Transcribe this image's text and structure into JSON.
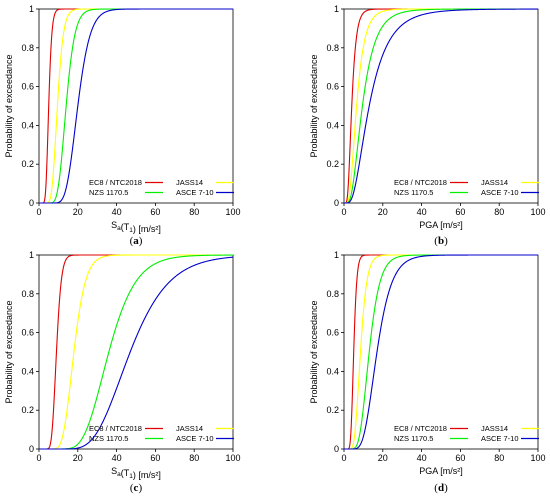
{
  "colors": {
    "EC8 / NTC2018": "#e00000",
    "JASS14": "#ffff00",
    "NZS 1170.5": "#00ef00",
    "ASCE 7-10": "#0000cc"
  },
  "chart_data": [
    {
      "type": "line",
      "caption": "(a)",
      "xlabel_main": "S",
      "xlabel_sub": "a",
      "xlabel_rest": "(T",
      "xlabel_sub2": "1",
      "xlabel_unit": ") [m/s²]",
      "ylabel": "Probability of exceedance",
      "xlim": [
        0,
        100
      ],
      "ylim": [
        0,
        1
      ],
      "xticks": [
        "0",
        "20",
        "40",
        "60",
        "80",
        "100"
      ],
      "yticks": [
        "0",
        "0.2",
        "0.4",
        "0.6",
        "0.8",
        "1"
      ],
      "grid": false,
      "legend": [
        {
          "label": "EC8 / NTC2018",
          "color_key": "EC8 / NTC2018"
        },
        {
          "label": "JASS14",
          "color_key": "JASS14"
        },
        {
          "label": "NZS 1170.5",
          "color_key": "NZS 1170.5"
        },
        {
          "label": "ASCE 7-10",
          "color_key": "ASCE 7-10"
        }
      ],
      "legend_location": "bottom-right",
      "series": [
        {
          "name": "EC8 / NTC2018",
          "median": 5,
          "beta": 0.25
        },
        {
          "name": "JASS14",
          "median": 9.5,
          "beta": 0.25
        },
        {
          "name": "NZS 1170.5",
          "median": 14,
          "beta": 0.25
        },
        {
          "name": "ASCE 7-10",
          "median": 20,
          "beta": 0.25
        }
      ]
    },
    {
      "type": "line",
      "caption": "(b)",
      "xlabel": "PGA [m/s²]",
      "ylabel": "Probability of exceedance",
      "xlim": [
        0,
        100
      ],
      "ylim": [
        0,
        1
      ],
      "xticks": [
        "0",
        "20",
        "40",
        "60",
        "80",
        "100"
      ],
      "yticks": [
        "0",
        "0.2",
        "0.4",
        "0.6",
        "0.8",
        "1"
      ],
      "grid": false,
      "legend": [
        {
          "label": "EC8 / NTC2018",
          "color_key": "EC8 / NTC2018"
        },
        {
          "label": "JASS14",
          "color_key": "JASS14"
        },
        {
          "label": "NZS 1170.5",
          "color_key": "NZS 1170.5"
        },
        {
          "label": "ASCE 7-10",
          "color_key": "ASCE 7-10"
        }
      ],
      "legend_location": "bottom-right",
      "series": [
        {
          "name": "EC8 / NTC2018",
          "median": 4,
          "beta": 0.45
        },
        {
          "name": "JASS14",
          "median": 6.5,
          "beta": 0.5
        },
        {
          "name": "NZS 1170.5",
          "median": 9.5,
          "beta": 0.55
        },
        {
          "name": "ASCE 7-10",
          "median": 13,
          "beta": 0.6
        }
      ]
    },
    {
      "type": "line",
      "caption": "(c)",
      "xlabel_main": "S",
      "xlabel_sub": "a",
      "xlabel_rest": "(T",
      "xlabel_sub2": "1",
      "xlabel_unit": ") [m/s²]",
      "ylabel": "Probability of exceedance",
      "xlim": [
        0,
        100
      ],
      "ylim": [
        0,
        1
      ],
      "xticks": [
        "0",
        "20",
        "40",
        "60",
        "80",
        "100"
      ],
      "yticks": [
        "0",
        "0.2",
        "0.4",
        "0.6",
        "0.8",
        "1"
      ],
      "grid": false,
      "legend": [
        {
          "label": "EC8 / NTC2018",
          "color_key": "EC8 / NTC2018"
        },
        {
          "label": "JASS14",
          "color_key": "JASS14"
        },
        {
          "label": "NZS 1170.5",
          "color_key": "NZS 1170.5"
        },
        {
          "label": "ASCE 7-10",
          "color_key": "ASCE 7-10"
        }
      ],
      "legend_location": "bottom-right",
      "series": [
        {
          "name": "EC8 / NTC2018",
          "median": 9,
          "beta": 0.22
        },
        {
          "name": "JASS14",
          "median": 18,
          "beta": 0.26
        },
        {
          "name": "NZS 1170.5",
          "median": 36,
          "beta": 0.3
        },
        {
          "name": "ASCE 7-10",
          "median": 47,
          "beta": 0.33
        }
      ]
    },
    {
      "type": "line",
      "caption": "(d)",
      "xlabel": "PGA [m/s²]",
      "ylabel": "Probability of exceedance",
      "xlim": [
        0,
        100
      ],
      "ylim": [
        0,
        1
      ],
      "xticks": [
        "0",
        "20",
        "40",
        "60",
        "80",
        "100"
      ],
      "yticks": [
        "0",
        "0.2",
        "0.4",
        "0.6",
        "0.8",
        "1"
      ],
      "grid": false,
      "legend": [
        {
          "label": "EC8 / NTC2018",
          "color_key": "EC8 / NTC2018"
        },
        {
          "label": "JASS14",
          "color_key": "JASS14"
        },
        {
          "label": "NZS 1170.5",
          "color_key": "NZS 1170.5"
        },
        {
          "label": "ASCE 7-10",
          "color_key": "ASCE 7-10"
        }
      ],
      "legend_location": "bottom-right",
      "series": [
        {
          "name": "EC8 / NTC2018",
          "median": 5,
          "beta": 0.25
        },
        {
          "name": "JASS14",
          "median": 8.5,
          "beta": 0.3
        },
        {
          "name": "NZS 1170.5",
          "median": 13,
          "beta": 0.33
        },
        {
          "name": "ASCE 7-10",
          "median": 17,
          "beta": 0.35
        }
      ]
    }
  ]
}
